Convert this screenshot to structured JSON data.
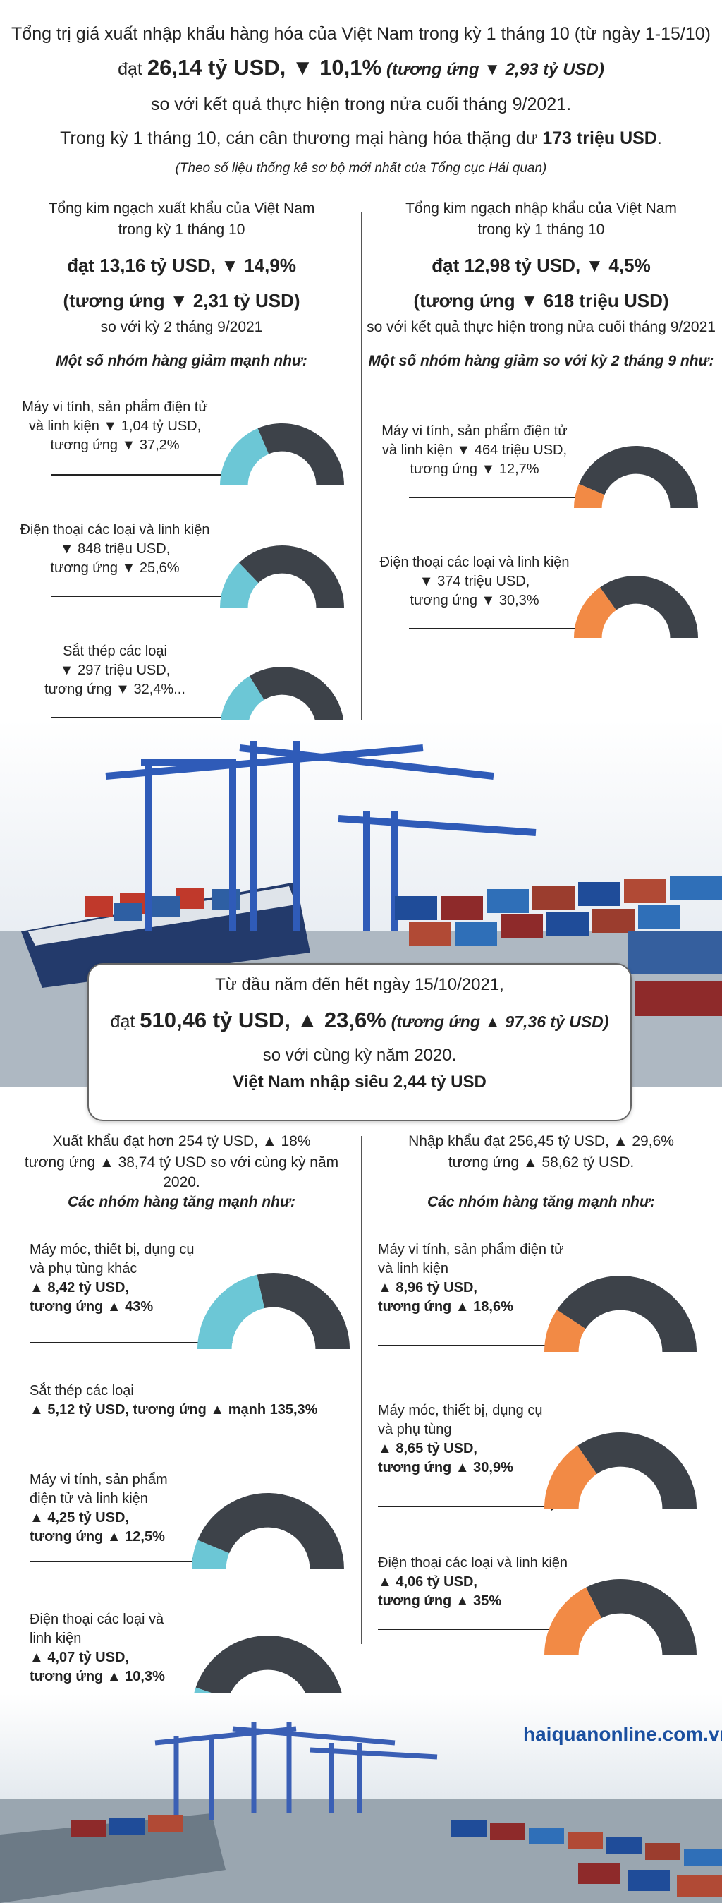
{
  "header": {
    "line1": "Tổng trị giá xuất nhập khẩu hàng hóa của Việt Nam trong kỳ 1 tháng 10 (từ ngày 1-15/10)",
    "line2_prefix": "đạt",
    "line2_value": "26,14 tỷ USD, ▼ 10,1%",
    "line2_italic": "(tương ứng ▼ 2,93 tỷ USD)",
    "line3": "so với kết quả thực hiện trong nửa cuối tháng 9/2021.",
    "line4_prefix": "Trong kỳ 1 tháng 10, cán cân thương mại hàng hóa thặng dư",
    "line4_value": "173 triệu USD",
    "line4_suffix": ".",
    "note": "(Theo số liệu thống kê sơ bộ mới nhất của Tổng cục Hải quan)"
  },
  "export_period": {
    "title1": "Tổng kim ngạch xuất khẩu của Việt Nam",
    "title2": "trong kỳ 1 tháng 10",
    "value": "đạt 13,16 tỷ USD, ▼ 14,9%",
    "change": "(tương ứng ▼ 2,31 tỷ USD)",
    "compare": "so với kỳ 2 tháng 9/2021",
    "subheading": "Một số nhóm hàng giảm mạnh như:",
    "items": [
      {
        "lines": [
          "Máy vi tính, sản phẩm điện tử",
          "và linh kiện ▼ 1,04 tỷ USD,",
          "tương ứng ▼ 37,2%"
        ]
      },
      {
        "lines": [
          "Điện thoại các loại và linh kiện",
          "▼ 848 triệu USD,",
          "tương ứng ▼ 25,6%"
        ]
      },
      {
        "lines": [
          "Sắt thép các loại",
          "▼ 297 triệu USD,",
          "tương ứng ▼ 32,4%..."
        ]
      }
    ]
  },
  "import_period": {
    "title1": "Tổng kim ngạch nhập khẩu của Việt Nam",
    "title2": "trong kỳ 1 tháng 10",
    "value": "đạt 12,98 tỷ USD, ▼ 4,5%",
    "change": "(tương ứng ▼ 618 triệu USD)",
    "compare": "so với kết quả thực hiện trong nửa cuối tháng 9/2021",
    "subheading": "Một số nhóm hàng giảm so với kỳ 2 tháng 9 như:",
    "items": [
      {
        "lines": [
          "Máy vi tính, sản phẩm điện tử",
          "và linh kiện ▼ 464 triệu USD,",
          "tương ứng ▼ 12,7%"
        ]
      },
      {
        "lines": [
          "Điện thoại các loại và linh kiện",
          "▼ 374 triệu USD,",
          "tương ứng ▼ 30,3%"
        ]
      }
    ]
  },
  "ytd_box": {
    "line1": "Từ đầu năm đến hết ngày 15/10/2021,",
    "line2_prefix": "đạt",
    "line2_value": "510,46 tỷ USD, ▲ 23,6%",
    "line2_italic": "(tương ứng ▲ 97,36 tỷ USD)",
    "line3": "so với cùng kỳ năm 2020.",
    "line4": "Việt Nam nhập siêu 2,44 tỷ USD"
  },
  "export_ytd": {
    "title1": "Xuất khẩu đạt hơn 254 tỷ USD, ▲ 18%",
    "title2": "tương ứng ▲ 38,74 tỷ USD so với cùng kỳ năm 2020.",
    "subheading": "Các nhóm hàng tăng mạnh như:",
    "items": [
      {
        "plain": [
          "Máy móc, thiết bị, dụng cụ",
          "và phụ tùng khác"
        ],
        "bold": [
          "▲ 8,42 tỷ USD,",
          "tương ứng ▲ 43%"
        ]
      },
      {
        "plain": [
          "Sắt thép các loại"
        ],
        "bold": [
          "▲ 5,12 tỷ USD, tương ứng ▲ mạnh 135,3%"
        ]
      },
      {
        "plain": [
          "Máy vi tính, sản phẩm",
          "điện tử và linh kiện"
        ],
        "bold": [
          "▲ 4,25 tỷ USD,",
          "tương ứng ▲ 12,5%"
        ]
      },
      {
        "plain": [
          "Điện thoại các loại và",
          "linh kiện"
        ],
        "bold": [
          "▲ 4,07 tỷ USD,",
          "tương ứng ▲ 10,3%"
        ]
      }
    ]
  },
  "import_ytd": {
    "title1": "Nhập khẩu đạt 256,45 tỷ USD, ▲ 29,6%",
    "title2": "tương ứng ▲ 58,62 tỷ USD.",
    "subheading": "Các nhóm hàng tăng mạnh như:",
    "items": [
      {
        "plain": [
          "Máy vi tính, sản phẩm điện tử",
          "và linh kiện"
        ],
        "bold": [
          "▲ 8,96 tỷ USD,",
          "tương ứng ▲ 18,6%"
        ]
      },
      {
        "plain": [
          "Máy móc, thiết bị, dụng cụ",
          "và phụ tùng"
        ],
        "bold": [
          "▲ 8,65 tỷ USD,",
          "tương ứng ▲ 30,9%"
        ]
      },
      {
        "plain": [
          "Điện thoại các loại và linh kiện"
        ],
        "bold": [
          "▲ 4,06 tỷ USD,",
          "tương ứng ▲ 35%"
        ]
      }
    ]
  },
  "footer": {
    "site": "haiquanonline.com.vn"
  },
  "colors": {
    "export": "#6cc7d6",
    "import": "#f28a45",
    "base": "#3d4249"
  },
  "chart_data": [
    {
      "type": "pie",
      "group": "export_period",
      "values": [
        37.2,
        25.6,
        32.4
      ]
    },
    {
      "type": "pie",
      "group": "import_period",
      "values": [
        12.7,
        30.3
      ]
    },
    {
      "type": "pie",
      "group": "export_ytd",
      "values": [
        43,
        12.5,
        10.3
      ]
    },
    {
      "type": "pie",
      "group": "import_ytd",
      "values": [
        18.6,
        30.9,
        35
      ]
    }
  ]
}
